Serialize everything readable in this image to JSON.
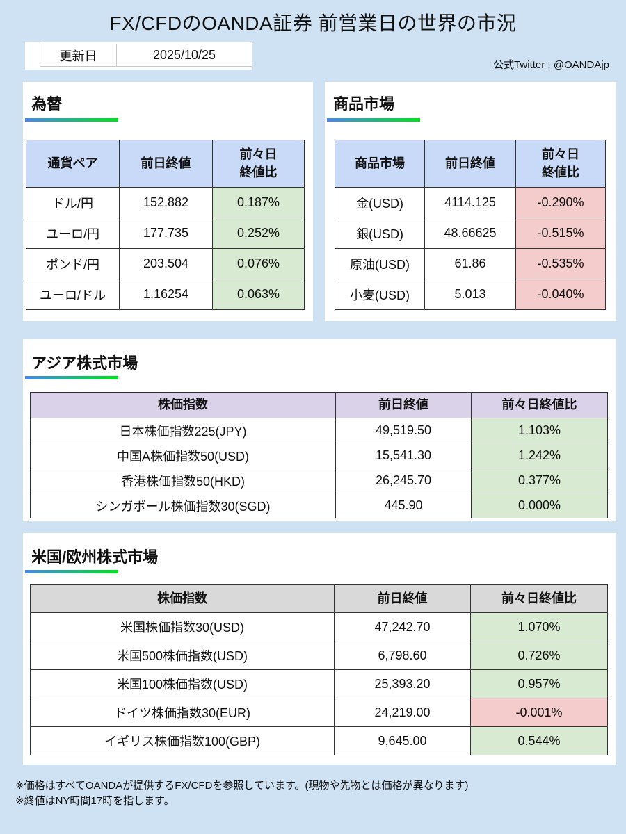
{
  "title": "FX/CFDのOANDA証券 前営業日の世界の市況",
  "update": {
    "label": "更新日",
    "date": "2025/10/25"
  },
  "twitter": "公式Twitter : @OANDAjp",
  "fx": {
    "title": "為替",
    "headers": [
      "通貨ペア",
      "前日終値",
      "前々日\n終値比"
    ],
    "rows": [
      [
        "ドル/円",
        "152.882",
        "0.187%"
      ],
      [
        "ユーロ/円",
        "177.735",
        "0.252%"
      ],
      [
        "ポンド/円",
        "203.504",
        "0.076%"
      ],
      [
        "ユーロ/ドル",
        "1.16254",
        "0.063%"
      ]
    ]
  },
  "commodity": {
    "title": "商品市場",
    "headers": [
      "商品市場",
      "前日終値",
      "前々日\n終値比"
    ],
    "rows": [
      [
        "金(USD)",
        "4114.125",
        "-0.290%"
      ],
      [
        "銀(USD)",
        "48.66625",
        "-0.515%"
      ],
      [
        "原油(USD)",
        "61.86",
        "-0.535%"
      ],
      [
        "小麦(USD)",
        "5.013",
        "-0.040%"
      ]
    ]
  },
  "asia": {
    "title": "アジア株式市場",
    "headers": [
      "株価指数",
      "前日終値",
      "前々日終値比"
    ],
    "rows": [
      [
        "日本株価指数225(JPY)",
        "49,519.50",
        "1.103%"
      ],
      [
        "中国A株価指数50(USD)",
        "15,541.30",
        "1.242%"
      ],
      [
        "香港株価指数50(HKD)",
        "26,245.70",
        "0.377%"
      ],
      [
        "シンガポール株価指数30(SGD)",
        "445.90",
        "0.000%"
      ]
    ]
  },
  "useu": {
    "title": "米国/欧州株式市場",
    "headers": [
      "株価指数",
      "前日終値",
      "前々日終値比"
    ],
    "rows": [
      [
        "米国株価指数30(USD)",
        "47,242.70",
        "1.070%"
      ],
      [
        "米国500株価指数(USD)",
        "6,798.60",
        "0.726%"
      ],
      [
        "米国100株価指数(USD)",
        "25,393.20",
        "0.957%"
      ],
      [
        "ドイツ株価指数30(EUR)",
        "24,219.00",
        "-0.001%"
      ],
      [
        "イギリス株価指数100(GBP)",
        "9,645.00",
        "0.544%"
      ]
    ]
  },
  "colors": {
    "bg": "#cfe2f3",
    "fx_header": "#c9daf8",
    "asia_header": "#d9d2e9",
    "useu_header": "#d9d9d9",
    "positive": "#d9ead3",
    "negative": "#f4cccc"
  },
  "footer": [
    "※価格はすべてOANDAが提供するFX/CFDを参照しています。(現物や先物とは価格が異なります)",
    "※終値はNY時間17時を指します。"
  ]
}
